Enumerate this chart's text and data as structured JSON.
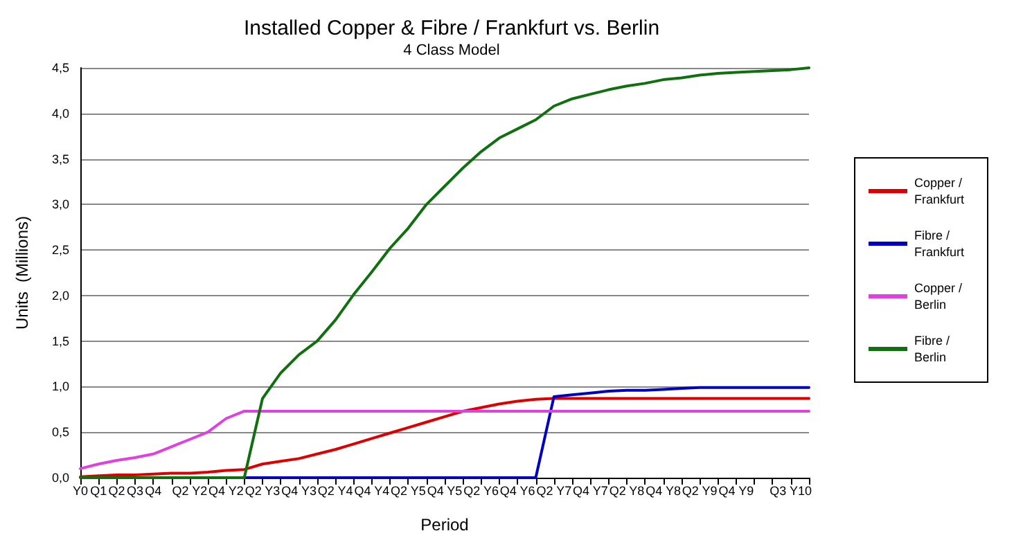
{
  "chart_data": {
    "type": "line",
    "title": "Installed Copper & Fibre / Frankfurt vs. Berlin",
    "subtitle": "4 Class Model",
    "xlabel": "Period",
    "ylabel": "Units  (Millions)",
    "categories": [
      "Y0",
      "Q1",
      "Q2",
      "Q3",
      "Q4",
      null,
      "Q2 Y2",
      null,
      "Q4 Y2",
      null,
      "Q2 Y3",
      null,
      "Q4 Y3",
      null,
      "Q2 Y4",
      null,
      "Q4 Y4",
      null,
      "Q2 Y5",
      null,
      "Q4 Y5",
      null,
      "Q2 Y6",
      null,
      "Q4 Y6",
      null,
      "Q2 Y7",
      null,
      "Q4 Y7",
      null,
      "Q2 Y8",
      null,
      "Q4 Y8",
      null,
      "Q2 Y9",
      null,
      "Q4 Y9",
      null,
      null,
      "Q3 Y10",
      null
    ],
    "series": [
      {
        "name": "Copper / Frankfurt",
        "color": "#dd0000",
        "values": [
          0.01,
          0.02,
          0.03,
          0.03,
          0.04,
          0.05,
          0.05,
          0.06,
          0.08,
          0.09,
          0.15,
          0.18,
          0.21,
          0.26,
          0.31,
          0.37,
          0.43,
          0.49,
          0.55,
          0.61,
          0.67,
          0.73,
          0.77,
          0.81,
          0.84,
          0.86,
          0.87,
          0.87,
          0.87,
          0.87,
          0.87,
          0.87,
          0.87,
          0.87,
          0.87,
          0.87,
          0.87,
          0.87,
          0.87,
          0.87,
          0.87
        ]
      },
      {
        "name": "Fibre / Frankfurt",
        "color": "#0000c0",
        "values": [
          null,
          null,
          null,
          null,
          null,
          null,
          null,
          null,
          null,
          0,
          0,
          0,
          0,
          0,
          0,
          0,
          0,
          0,
          0,
          0,
          0,
          0,
          0,
          0,
          0,
          0,
          0.89,
          0.91,
          0.93,
          0.95,
          0.96,
          0.96,
          0.97,
          0.98,
          0.99,
          0.99,
          0.99,
          0.99,
          0.99,
          0.99,
          0.99
        ]
      },
      {
        "name": "Copper / Berlin",
        "color": "#e040e0",
        "values": [
          0.1,
          0.15,
          0.19,
          0.22,
          0.26,
          0.34,
          0.42,
          0.5,
          0.65,
          0.73,
          0.73,
          0.73,
          0.73,
          0.73,
          0.73,
          0.73,
          0.73,
          0.73,
          0.73,
          0.73,
          0.73,
          0.73,
          0.73,
          0.73,
          0.73,
          0.73,
          0.73,
          0.73,
          0.73,
          0.73,
          0.73,
          0.73,
          0.73,
          0.73,
          0.73,
          0.73,
          0.73,
          0.73,
          0.73,
          0.73,
          0.73
        ]
      },
      {
        "name": "Fibre / Berlin",
        "color": "#107010",
        "values": [
          0,
          0,
          0,
          0,
          0,
          0,
          0,
          0,
          0,
          0,
          0.87,
          1.15,
          1.35,
          1.5,
          1.73,
          2.01,
          2.26,
          2.52,
          2.74,
          3.0,
          3.2,
          3.4,
          3.58,
          3.73,
          3.83,
          3.93,
          4.08,
          4.16,
          4.21,
          4.26,
          4.3,
          4.33,
          4.37,
          4.39,
          4.42,
          4.44,
          4.45,
          4.46,
          4.47,
          4.48,
          4.5
        ]
      }
    ],
    "ylim": [
      0,
      4.5
    ],
    "yticks": [
      {
        "value": 0,
        "label": "0,0"
      },
      {
        "value": 0.5,
        "label": "0,5"
      },
      {
        "value": 1,
        "label": "1,0"
      },
      {
        "value": 1.5,
        "label": "1,5"
      },
      {
        "value": 2,
        "label": "2,0"
      },
      {
        "value": 2.5,
        "label": "2,5"
      },
      {
        "value": 3,
        "label": "3,0"
      },
      {
        "value": 3.5,
        "label": "3,5"
      },
      {
        "value": 4,
        "label": "4,0"
      },
      {
        "value": 4.5,
        "label": "4,5"
      }
    ],
    "grid": "y",
    "legend": "right",
    "line_style": "solid"
  }
}
